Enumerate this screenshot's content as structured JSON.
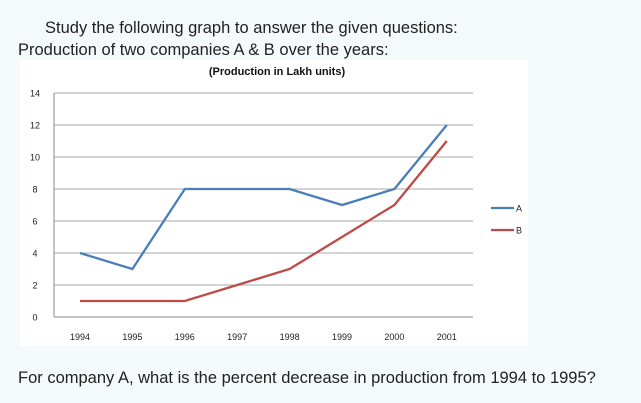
{
  "heading": "Study the following graph to answer the given questions:",
  "subheading": "Production of two companies A & B over the years:",
  "question": "For company A, what is the percent decrease in production from 1994 to 1995?",
  "chart_data": {
    "type": "line",
    "title": "(Production in Lakh units)",
    "categories": [
      "1994",
      "1995",
      "1996",
      "1997",
      "1998",
      "1999",
      "2000",
      "2001"
    ],
    "yticks": [
      "0",
      "2",
      "4",
      "6",
      "8",
      "10",
      "12",
      "14"
    ],
    "ylim": [
      0,
      14
    ],
    "grid": true,
    "legend_placement": "right",
    "series": [
      {
        "name": "A",
        "color": "#4a7ebb",
        "values": [
          4,
          3,
          8,
          8,
          8,
          7,
          8,
          12
        ]
      },
      {
        "name": "B",
        "color": "#be4b48",
        "values": [
          1,
          1,
          1,
          2,
          3,
          5,
          7,
          11
        ]
      }
    ]
  }
}
